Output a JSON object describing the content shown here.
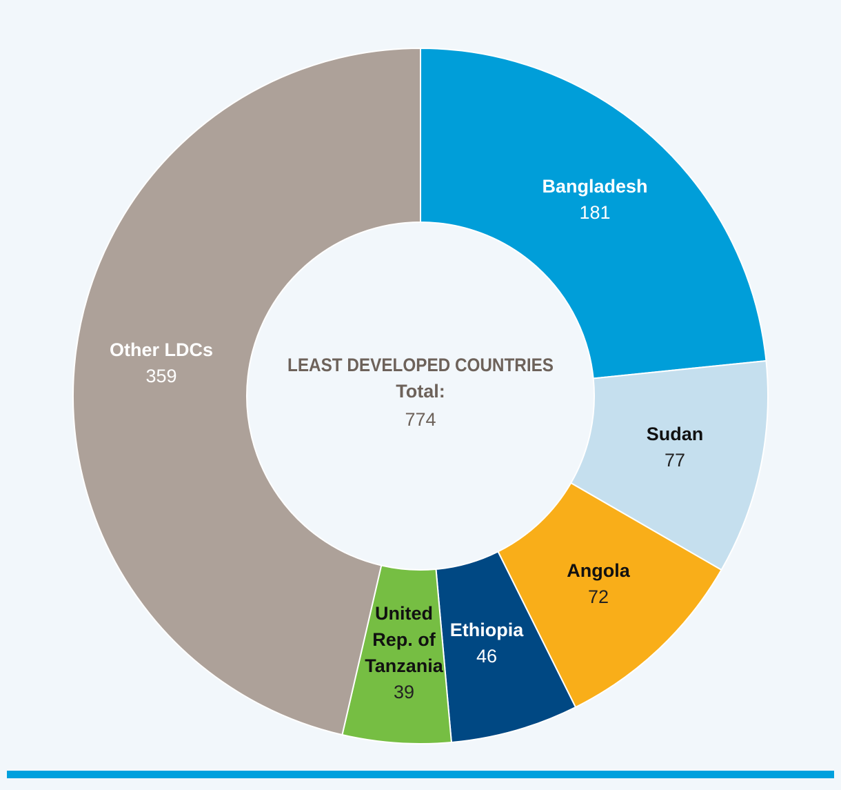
{
  "chart_data": {
    "type": "pie",
    "subtype": "donut",
    "center_title": "LEAST DEVELOPED COUNTRIES",
    "center_subtitle": "Total:",
    "total": "774",
    "categories": [
      "Bangladesh",
      "Sudan",
      "Angola",
      "Ethiopia",
      "United Rep. of Tanzania",
      "Other LDCs"
    ],
    "values": [
      181,
      77,
      72,
      46,
      39,
      359
    ],
    "slices": [
      {
        "name": "Bangladesh",
        "label_lines": [
          "Bangladesh"
        ],
        "value": "181",
        "color": "#009ed9",
        "text_color": "#ffffff",
        "value_color": "#ffffff"
      },
      {
        "name": "Sudan",
        "label_lines": [
          "Sudan"
        ],
        "value": "77",
        "color": "#c5dfee",
        "text_color": "#111111",
        "value_color": "#222222"
      },
      {
        "name": "Angola",
        "label_lines": [
          "Angola"
        ],
        "value": "72",
        "color": "#f9ae19",
        "text_color": "#111111",
        "value_color": "#222222"
      },
      {
        "name": "Ethiopia",
        "label_lines": [
          "Ethiopia"
        ],
        "value": "46",
        "color": "#004883",
        "text_color": "#ffffff",
        "value_color": "#ffffff"
      },
      {
        "name": "United Rep. of Tanzania",
        "label_lines": [
          "United",
          "Rep. of",
          "Tanzania"
        ],
        "value": "39",
        "color": "#76be43",
        "text_color": "#111111",
        "value_color": "#222222"
      },
      {
        "name": "Other LDCs",
        "label_lines": [
          "Other LDCs"
        ],
        "value": "359",
        "color": "#ada199",
        "text_color": "#ffffff",
        "value_color": "#ffffff"
      }
    ],
    "center_text_color": "#6d625a",
    "accent_rule_color": "#00a0dd",
    "background": "#f2f7fb"
  }
}
